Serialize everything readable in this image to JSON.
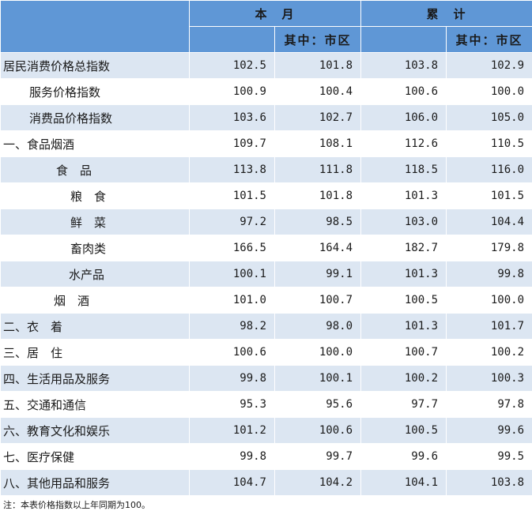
{
  "header": {
    "month": "本　月",
    "month_urban": "其中：市区",
    "cumulative": "累　计",
    "cumulative_urban": "其中：市区"
  },
  "rows": [
    {
      "label": "居民消费价格总指数",
      "values": [
        "102.5",
        "101.8",
        "103.8",
        "102.9"
      ]
    },
    {
      "label": "服务价格指数",
      "values": [
        "100.9",
        "100.4",
        "100.6",
        "100.0"
      ]
    },
    {
      "label": "消费品价格指数",
      "values": [
        "103.6",
        "102.7",
        "106.0",
        "105.0"
      ]
    },
    {
      "label": "一、食品烟酒",
      "values": [
        "109.7",
        "108.1",
        "112.6",
        "110.5"
      ]
    },
    {
      "label": "食　品",
      "values": [
        "113.8",
        "111.8",
        "118.5",
        "116.0"
      ]
    },
    {
      "label": "粮　食",
      "values": [
        "101.5",
        "101.8",
        "101.3",
        "101.5"
      ]
    },
    {
      "label": "鲜　菜",
      "values": [
        "97.2",
        "98.5",
        "103.0",
        "104.4"
      ]
    },
    {
      "label": "畜肉类",
      "values": [
        "166.5",
        "164.4",
        "182.7",
        "179.8"
      ]
    },
    {
      "label": "水产品",
      "values": [
        "100.1",
        "99.1",
        "101.3",
        "99.8"
      ]
    },
    {
      "label": "烟　酒",
      "values": [
        "101.0",
        "100.7",
        "100.5",
        "100.0"
      ]
    },
    {
      "label": "二、衣　着",
      "values": [
        "98.2",
        "98.0",
        "101.3",
        "101.7"
      ]
    },
    {
      "label": "三、居　住",
      "values": [
        "100.6",
        "100.0",
        "100.7",
        "100.2"
      ]
    },
    {
      "label": "四、生活用品及服务",
      "values": [
        "99.8",
        "100.1",
        "100.2",
        "100.3"
      ]
    },
    {
      "label": "五、交通和通信",
      "values": [
        "95.3",
        "95.6",
        "97.7",
        "97.8"
      ]
    },
    {
      "label": "六、教育文化和娱乐",
      "values": [
        "101.2",
        "100.6",
        "100.5",
        "99.6"
      ]
    },
    {
      "label": "七、医疗保健",
      "values": [
        "99.8",
        "99.7",
        "99.6",
        "99.5"
      ]
    },
    {
      "label": "八、其他用品和服务",
      "values": [
        "104.7",
        "104.2",
        "104.1",
        "103.8"
      ]
    }
  ],
  "note": "注：本表价格指数以上年同期为100。",
  "colors": {
    "header_bg": "#5f97d6",
    "band_bg": "#dce6f2"
  }
}
